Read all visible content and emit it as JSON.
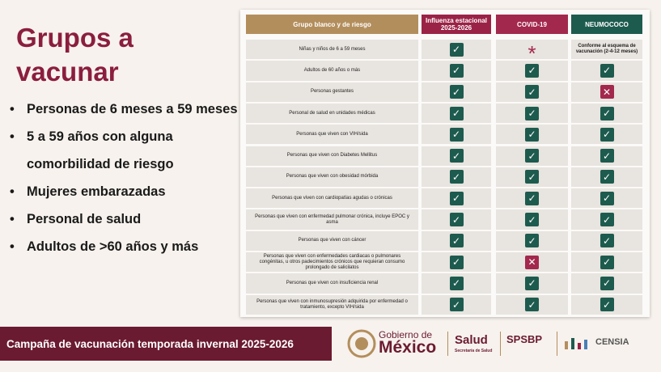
{
  "header": {
    "title": "Grupos a vacunar"
  },
  "bullets": [
    "Personas de 6 meses a 59 meses",
    "5 a 59 años con alguna comorbilidad de riesgo",
    "Mujeres embarazadas",
    "Personal de salud",
    "Adultos de >60 años y más"
  ],
  "table": {
    "columns": [
      {
        "text": "Grupo blanco y de riesgo",
        "color": "#b38e5d"
      },
      {
        "text": "Influenza estacional 2025-2026",
        "color": "#9b2247"
      },
      {
        "text": "COVID-19",
        "color": "#a3284d"
      },
      {
        "text": "NEUMOCOCO",
        "color": "#1e5b4f"
      }
    ],
    "rows": [
      [
        "Niñas y niños de 6 a 59 meses",
        {
          "text": "✓",
          "fill": "#1e5b4f"
        },
        {
          "text": "*",
          "color": "#a3284d"
        },
        {
          "text": "Conforme al esquema de vacunación (2-4-12 meses)"
        }
      ],
      [
        "Adultos de 60 años o más",
        {
          "text": "✓",
          "fill": "#1e5b4f"
        },
        {
          "text": "✓",
          "fill": "#1e5b4f"
        },
        {
          "text": "✓",
          "fill": "#1e5b4f"
        }
      ],
      [
        "Personas gestantes",
        {
          "text": "✓",
          "fill": "#1e5b4f"
        },
        {
          "text": "✓",
          "fill": "#1e5b4f"
        },
        {
          "text": "✕",
          "fill": "#a3284d"
        }
      ],
      [
        "Personal de salud en unidades médicas",
        {
          "text": "✓",
          "fill": "#1e5b4f"
        },
        {
          "text": "✓",
          "fill": "#1e5b4f"
        },
        {
          "text": "✓",
          "fill": "#1e5b4f"
        }
      ],
      [
        "Personas que viven con VIH/sida",
        {
          "text": "✓",
          "fill": "#1e5b4f"
        },
        {
          "text": "✓",
          "fill": "#1e5b4f"
        },
        {
          "text": "✓",
          "fill": "#1e5b4f"
        }
      ],
      [
        "Personas que viven con Diabetes Mellitus",
        {
          "text": "✓",
          "fill": "#1e5b4f"
        },
        {
          "text": "✓",
          "fill": "#1e5b4f"
        },
        {
          "text": "✓",
          "fill": "#1e5b4f"
        }
      ],
      [
        "Personas que viven con obesidad mórbida",
        {
          "text": "✓",
          "fill": "#1e5b4f"
        },
        {
          "text": "✓",
          "fill": "#1e5b4f"
        },
        {
          "text": "✓",
          "fill": "#1e5b4f"
        }
      ],
      [
        "Personas que viven con cardiopatías agudas o crónicas",
        {
          "text": "✓",
          "fill": "#1e5b4f"
        },
        {
          "text": "✓",
          "fill": "#1e5b4f"
        },
        {
          "text": "✓",
          "fill": "#1e5b4f"
        }
      ],
      [
        "Personas que viven con enfermedad pulmonar crónica, incluye EPOC y asma",
        {
          "text": "✓",
          "fill": "#1e5b4f"
        },
        {
          "text": "✓",
          "fill": "#1e5b4f"
        },
        {
          "text": "✓",
          "fill": "#1e5b4f"
        }
      ],
      [
        "Personas que viven con cáncer",
        {
          "text": "✓",
          "fill": "#1e5b4f"
        },
        {
          "text": "✓",
          "fill": "#1e5b4f"
        },
        {
          "text": "✓",
          "fill": "#1e5b4f"
        }
      ],
      [
        "Personas que viven con enfermedades cardiacas o pulmonares congénitas, u otros padecimientos crónicos que requieran consumo prolongado de salicilatos",
        {
          "text": "✓",
          "fill": "#1e5b4f"
        },
        {
          "text": "✕",
          "fill": "#a3284d"
        },
        {
          "text": "✓",
          "fill": "#1e5b4f"
        }
      ],
      [
        "Personas que viven con insuficiencia renal",
        {
          "text": "✓",
          "fill": "#1e5b4f"
        },
        {
          "text": "✓",
          "fill": "#1e5b4f"
        },
        {
          "text": "✓",
          "fill": "#1e5b4f"
        }
      ],
      [
        "Personas que viven con inmunosupresión adquirida por enfermedad o tratamiento, excepto VIH/sida",
        {
          "text": "✓",
          "fill": "#1e5b4f"
        },
        {
          "text": "✓",
          "fill": "#1e5b4f"
        },
        {
          "text": "✓",
          "fill": "#1e5b4f"
        }
      ]
    ]
  },
  "footer": {
    "campaign": "Campaña de vacunación temporada invernal 2025-2026",
    "gobierno": "Gobierno de",
    "mexico": "México",
    "salud": "Salud",
    "salud_sub": "Secretaría de Salud",
    "spsbp": "SPSBP",
    "censia": "CENSIA"
  }
}
